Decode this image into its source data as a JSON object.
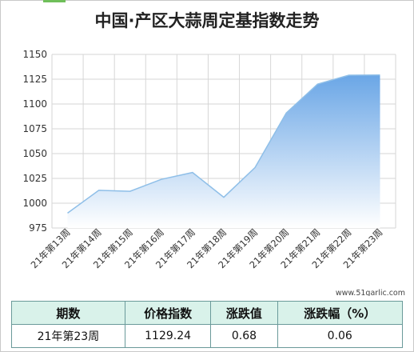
{
  "title": "中国·产区大蒜周定基指数走势",
  "chart_data": {
    "type": "area",
    "categories": [
      "21年第13周",
      "21年第14周",
      "21年第15周",
      "21年第16周",
      "21年第17周",
      "21年第18周",
      "21年第19周",
      "21年第20周",
      "21年第21周",
      "21年第22周",
      "21年第23周"
    ],
    "values": [
      990,
      1013,
      1012,
      1024,
      1031,
      1006,
      1036,
      1091,
      1120,
      1129,
      1129.24
    ],
    "ylim": [
      975,
      1150
    ],
    "yticks": [
      975,
      1000,
      1025,
      1050,
      1075,
      1100,
      1125,
      1150
    ],
    "grid": true,
    "colors": {
      "line": "#8fbfe8",
      "fill_top": "#6aa6e6",
      "fill_bottom": "#ffffff"
    }
  },
  "watermark": "www.51garlic.com",
  "table": {
    "headers": [
      "期数",
      "价格指数",
      "涨跌值",
      "涨跌幅（%）"
    ],
    "row": [
      "21年第23周",
      "1129.24",
      "0.68",
      "0.06"
    ]
  }
}
